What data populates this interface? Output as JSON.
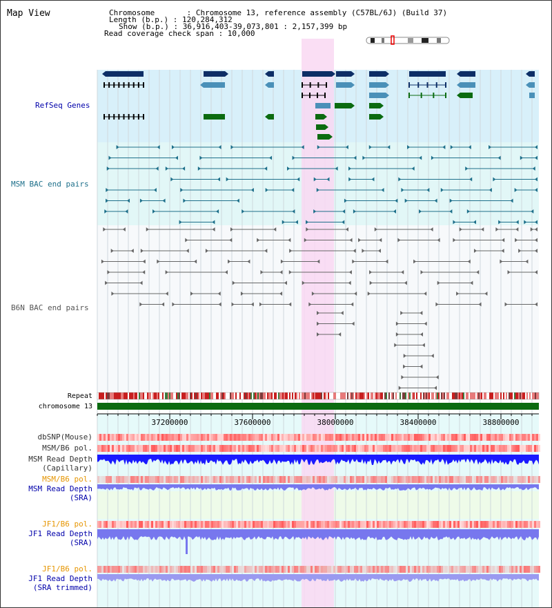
{
  "view_title": "Map View",
  "header": {
    "chromosome": "Chromosome       : Chromosome 13, reference assembly (C57BL/6J) (Build 37)",
    "length": "Length (b.p.) : 120,284,312",
    "show": "Show (b.p.) : 36,916,403-39,073,801 : 2,157,399 bp",
    "read_span": "Read coverage check span : 10,000"
  },
  "tracks": {
    "refseq": "RefSeq Genes",
    "msm_bac": "MSM BAC end pairs",
    "b6n_bac": "B6N BAC end pairs",
    "repeat": "Repeat",
    "chromosome": "chromosome 13",
    "dbsnp": "dbSNP(Mouse)",
    "msm_b6_pol": "MSM/B6 pol.",
    "msm_depth_cap_1": "MSM Read Depth",
    "msm_depth_cap_2": "(Capillary)",
    "msm_b6_pol_sra": "MSM/B6 pol.",
    "msm_depth_sra_1": "MSM Read Depth",
    "msm_depth_sra_2": "(SRA)",
    "jf1_b6_pol": "JF1/B6 pol.",
    "jf1_depth_1": "JF1 Read Depth",
    "jf1_depth_2": "(SRA)",
    "jf1_b6_pol_t": "JF1/B6 pol.",
    "jf1_depth_t_1": "JF1 Read Depth",
    "jf1_depth_t_2": "(SRA trimmed)"
  },
  "axis": {
    "ticks": [
      "37200000",
      "37600000",
      "38000000",
      "38400000",
      "38800000"
    ]
  },
  "colors": {
    "refseq_bg": "#d8f0fa",
    "msm_bg": "#e2f7f7",
    "highlight": "#f9d8f2",
    "gene_dark": "#0d2e66",
    "gene_mid": "#4a90b8",
    "gene_green": "#0b6b10",
    "msm_line": "#1d6f8a",
    "b6n_line": "#666666",
    "depth_blue": "#1a1aff",
    "depth_light": "#7777ee",
    "label_blue": "#0000aa",
    "label_orange": "#e69500",
    "label_teal": "#1d6f8a"
  }
}
